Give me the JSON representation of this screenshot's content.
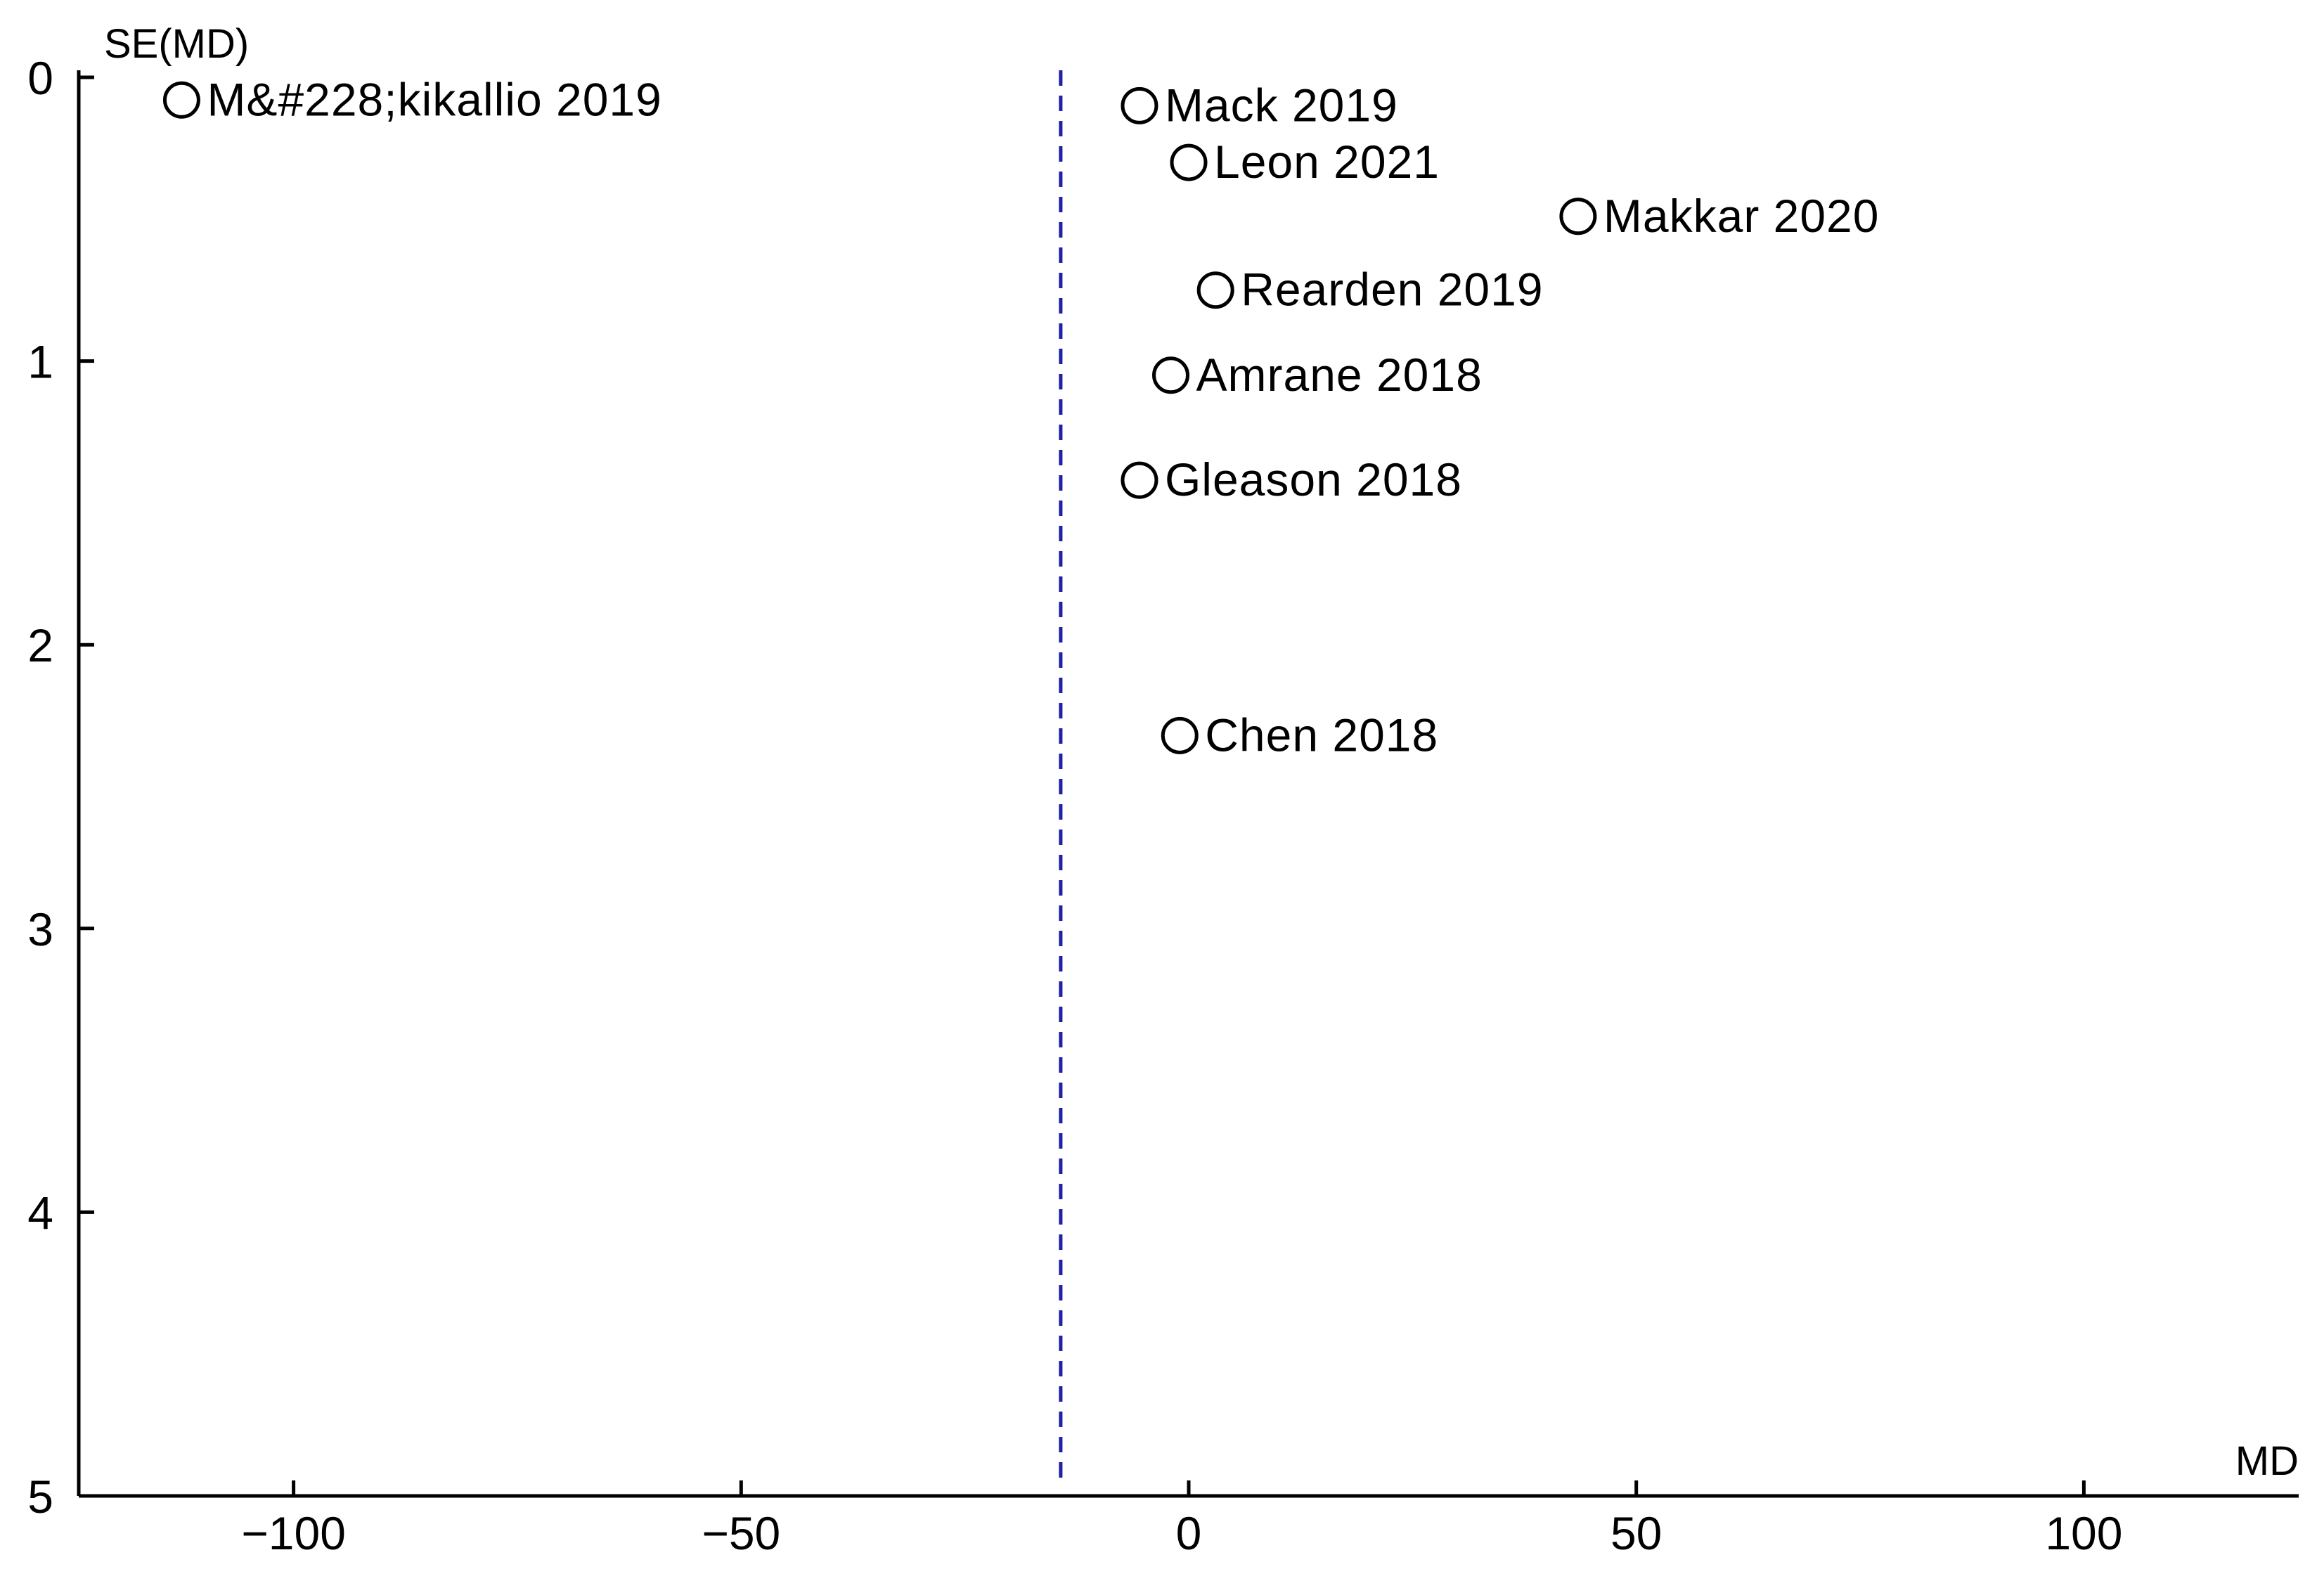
{
  "chart_data": {
    "type": "scatter",
    "title": "",
    "xlabel": "MD",
    "ylabel": "SE(MD)",
    "xlim": [
      -124,
      124
    ],
    "ylim": [
      0,
      5
    ],
    "y_inverted": true,
    "grid": false,
    "x_ticks": [
      -100,
      -50,
      0,
      50,
      100
    ],
    "x_tick_labels": [
      "−100",
      "−50",
      "0",
      "50",
      "100"
    ],
    "y_ticks": [
      0,
      1,
      2,
      3,
      4,
      5
    ],
    "y_tick_labels": [
      "0",
      "1",
      "2",
      "3",
      "4",
      "5"
    ],
    "reference_line": {
      "x": -14.3,
      "style": "dashed",
      "color": "#1f1fa8"
    },
    "points": [
      {
        "label": "M&#228;kikallio 2019",
        "x": -112.5,
        "y": 0.08
      },
      {
        "label": "Mack 2019",
        "x": -5.5,
        "y": 0.1
      },
      {
        "label": "Leon 2021",
        "x": 0.0,
        "y": 0.3
      },
      {
        "label": "Makkar 2020",
        "x": 43.5,
        "y": 0.49
      },
      {
        "label": "Rearden 2019",
        "x": 3.0,
        "y": 0.75
      },
      {
        "label": "Amrane 2018",
        "x": -2.0,
        "y": 1.05
      },
      {
        "label": "Gleason 2018",
        "x": -5.5,
        "y": 1.42
      },
      {
        "label": "Chen 2018",
        "x": -1.0,
        "y": 2.32
      }
    ]
  }
}
